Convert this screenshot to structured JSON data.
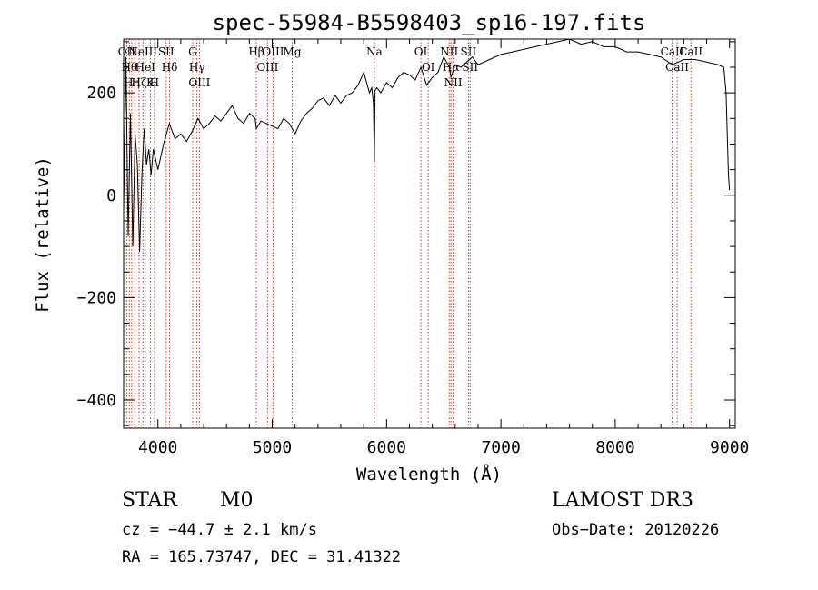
{
  "chart_data": {
    "type": "line",
    "title": "spec-55984-B5598403_sp16-197.fits",
    "xlabel": "Wavelength (Å)",
    "ylabel": "Flux (relative)",
    "xlim": [
      3700,
      9050
    ],
    "ylim": [
      -455,
      305
    ],
    "xticks": [
      4000,
      5000,
      6000,
      7000,
      8000,
      9000
    ],
    "yticks": [
      -400,
      -200,
      0,
      200
    ],
    "grid": false,
    "series": [
      {
        "x": [
          3700,
          3720,
          3740,
          3760,
          3780,
          3800,
          3820,
          3840,
          3860,
          3880,
          3900,
          3920,
          3940,
          3960,
          3980,
          4000,
          4050,
          4100,
          4150,
          4200,
          4250,
          4300,
          4350,
          4400,
          4450,
          4500,
          4550,
          4600,
          4650,
          4700,
          4750,
          4800,
          4850,
          4861,
          4900,
          4950,
          5000,
          5050,
          5100,
          5150,
          5200,
          5250,
          5300,
          5350,
          5400,
          5450,
          5500,
          5550,
          5600,
          5650,
          5700,
          5750,
          5800,
          5850,
          5870,
          5885,
          5893,
          5900,
          5915,
          5950,
          6000,
          6050,
          6100,
          6150,
          6200,
          6250,
          6300,
          6350,
          6400,
          6450,
          6500,
          6550,
          6563,
          6600,
          6650,
          6700,
          6750,
          6800,
          6900,
          7000,
          7100,
          7200,
          7300,
          7400,
          7500,
          7600,
          7700,
          7800,
          7900,
          8000,
          8100,
          8200,
          8300,
          8400,
          8500,
          8600,
          8700,
          8800,
          8900,
          8950,
          8970,
          8990,
          9000
        ],
        "y": [
          -30,
          270,
          -80,
          160,
          -100,
          120,
          60,
          -110,
          40,
          130,
          60,
          90,
          40,
          90,
          70,
          50,
          100,
          140,
          110,
          120,
          105,
          125,
          150,
          130,
          140,
          155,
          145,
          160,
          175,
          150,
          140,
          160,
          150,
          130,
          145,
          140,
          135,
          130,
          150,
          140,
          120,
          145,
          160,
          170,
          185,
          190,
          175,
          195,
          180,
          195,
          200,
          215,
          240,
          200,
          210,
          180,
          65,
          205,
          210,
          200,
          220,
          210,
          230,
          240,
          235,
          225,
          250,
          215,
          230,
          240,
          270,
          250,
          230,
          255,
          250,
          260,
          270,
          255,
          265,
          275,
          280,
          285,
          290,
          295,
          300,
          305,
          295,
          300,
          290,
          290,
          280,
          280,
          275,
          270,
          255,
          265,
          265,
          260,
          255,
          250,
          200,
          40,
          10
        ]
      }
    ],
    "lines": [
      {
        "wl": 3727,
        "lbl": "OII"
      },
      {
        "wl": 3750,
        "lbl": "Hθ"
      },
      {
        "wl": 3771,
        "lbl": "Hη"
      },
      {
        "wl": 3798,
        "lbl": ""
      },
      {
        "wl": 3835,
        "lbl": "Hζ"
      },
      {
        "wl": 3869,
        "lbl": "NeIII"
      },
      {
        "wl": 3889,
        "lbl": "HeI"
      },
      {
        "wl": 3934,
        "lbl": "K"
      },
      {
        "wl": 3969,
        "lbl": "H"
      },
      {
        "wl": 4072,
        "lbl": "SII"
      },
      {
        "wl": 4102,
        "lbl": "Hδ"
      },
      {
        "wl": 4304,
        "lbl": "G"
      },
      {
        "wl": 4341,
        "lbl": "Hγ"
      },
      {
        "wl": 4363,
        "lbl": "OIII"
      },
      {
        "wl": 4861,
        "lbl": "Hβ"
      },
      {
        "wl": 4959,
        "lbl": "OIII"
      },
      {
        "wl": 5007,
        "lbl": "OIII"
      },
      {
        "wl": 5175,
        "lbl": "Mg"
      },
      {
        "wl": 5893,
        "lbl": "Na"
      },
      {
        "wl": 6300,
        "lbl": "OI"
      },
      {
        "wl": 6364,
        "lbl": "OI"
      },
      {
        "wl": 6548,
        "lbl": "NII"
      },
      {
        "wl": 6563,
        "lbl": "Hα"
      },
      {
        "wl": 6583,
        "lbl": "NII"
      },
      {
        "wl": 6716,
        "lbl": "SII"
      },
      {
        "wl": 6731,
        "lbl": "SII"
      },
      {
        "wl": 8498,
        "lbl": "CaII"
      },
      {
        "wl": 8542,
        "lbl": "CaII"
      },
      {
        "wl": 8662,
        "lbl": "CaII"
      }
    ]
  },
  "info": {
    "object_class": "STAR",
    "subclass": "M0",
    "survey": "LAMOST DR3",
    "cz": "cz = −44.7 ± 2.1 km/s",
    "obs_date": "Obs−Date: 20120226",
    "coords": "RA = 165.73747, DEC =  31.41322"
  }
}
